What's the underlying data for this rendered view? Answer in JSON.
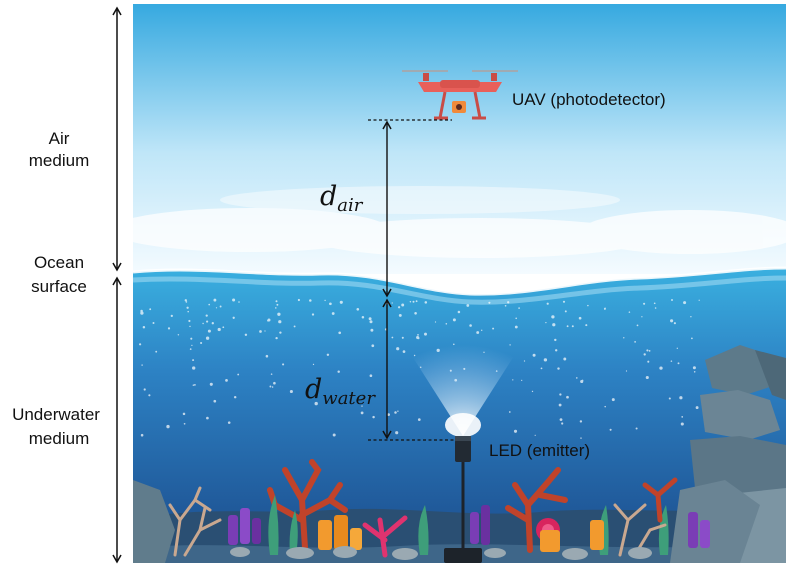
{
  "labels": {
    "air_line1": "Air",
    "air_line2": "medium",
    "ocean_line1": "Ocean",
    "ocean_line2": "surface",
    "underwater_line1": "Underwater",
    "underwater_line2": "medium",
    "uav": "UAV (photodetector)",
    "led": "LED (emitter)",
    "d_air_base": "d",
    "d_air_sub": "air",
    "d_water_base": "d",
    "d_water_sub": "water"
  },
  "colors": {
    "sky_top": "#36a9e0",
    "sky_bottom": "#f4fbff",
    "water_top": "#38a8dc",
    "water_bottom": "#1b4a8a",
    "drone": "#e8605a",
    "coral_red": "#c0432a",
    "coral_orange": "#f29a2e",
    "coral_pink": "#e0336f",
    "coral_purple": "#7a3db5",
    "rock": "#6b8595"
  }
}
